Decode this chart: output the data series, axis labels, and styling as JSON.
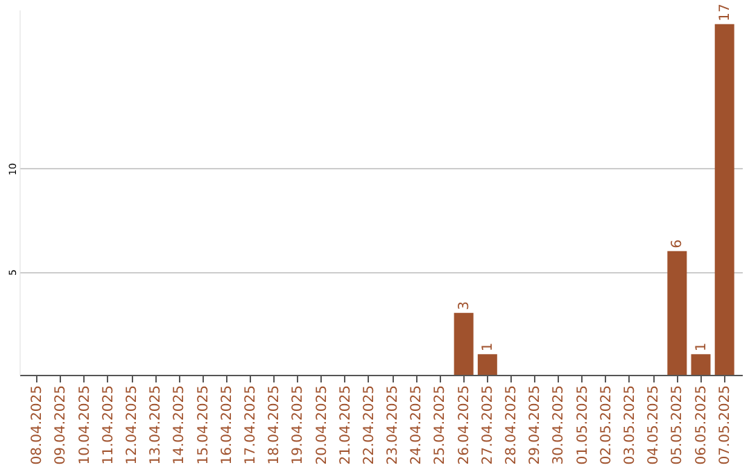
{
  "chart_data": {
    "type": "bar",
    "categories": [
      "08.04.2025",
      "09.04.2025",
      "10.04.2025",
      "11.04.2025",
      "12.04.2025",
      "13.04.2025",
      "14.04.2025",
      "15.04.2025",
      "16.04.2025",
      "17.04.2025",
      "18.04.2025",
      "19.04.2025",
      "20.04.2025",
      "21.04.2025",
      "22.04.2025",
      "23.04.2025",
      "24.04.2025",
      "25.04.2025",
      "26.04.2025",
      "27.04.2025",
      "28.04.2025",
      "29.04.2025",
      "30.04.2025",
      "01.05.2025",
      "02.05.2025",
      "03.05.2025",
      "04.05.2025",
      "05.05.2025",
      "06.05.2025",
      "07.05.2025"
    ],
    "values": [
      0,
      0,
      0,
      0,
      0,
      0,
      0,
      0,
      0,
      0,
      0,
      0,
      0,
      0,
      0,
      0,
      0,
      0,
      3,
      1,
      0,
      0,
      0,
      0,
      0,
      0,
      0,
      6,
      1,
      17
    ],
    "value_labels": [
      null,
      null,
      null,
      null,
      null,
      null,
      null,
      null,
      null,
      null,
      null,
      null,
      null,
      null,
      null,
      null,
      null,
      null,
      "3",
      "1",
      null,
      null,
      null,
      null,
      null,
      null,
      null,
      "6",
      "1",
      "17"
    ],
    "color": "#a0522d",
    "ylim": [
      0,
      17.7
    ],
    "yticks": [
      5,
      10
    ],
    "grid": "y"
  }
}
